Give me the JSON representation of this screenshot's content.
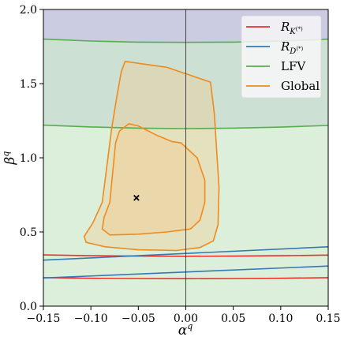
{
  "chart_data": {
    "type": "line",
    "title": "",
    "xlabel": "α^q",
    "ylabel": "β^q",
    "xlim": [
      -0.15,
      0.15
    ],
    "ylim": [
      0.0,
      2.0
    ],
    "x_ticks": [
      -0.15,
      -0.1,
      -0.05,
      0.0,
      0.05,
      0.1,
      0.15
    ],
    "x_tick_labels": [
      "−0.15",
      "−0.10",
      "−0.05",
      "0.00",
      "0.05",
      "0.10",
      "0.15"
    ],
    "y_ticks": [
      0.0,
      0.5,
      1.0,
      1.5,
      2.0
    ],
    "y_tick_labels": [
      "0.0",
      "0.5",
      "1.0",
      "1.5",
      "2.0"
    ],
    "grid": false,
    "reference_lines": [
      {
        "axis": "x",
        "value": 0.0
      }
    ],
    "legend_position": "top-right",
    "legend": [
      {
        "label": "R_K(*)",
        "base": "R",
        "sub": "K",
        "sup": "(*)",
        "color": "#e8332c"
      },
      {
        "label": "R_D(*)",
        "base": "R",
        "sub": "D",
        "sup": "(*)",
        "color": "#3478b5"
      },
      {
        "label": "LFV",
        "base": "LFV",
        "sub": "",
        "sup": "",
        "color": "#55af4b"
      },
      {
        "label": "Global",
        "base": "Global",
        "sub": "",
        "sup": "",
        "color": "#f08a1c"
      }
    ],
    "shaded_regions": [
      {
        "name": "LFV excluded (β > ~1.79)",
        "color": "#a8a8ce",
        "opacity": 0.6
      },
      {
        "name": "LFV 2σ band",
        "color": "#b0d0bc",
        "opacity": 0.65
      },
      {
        "name": "LFV 1σ band",
        "color": "#cfe9cf",
        "opacity": 0.75
      }
    ],
    "series": [
      {
        "name": "LFV",
        "color": "#55af4b",
        "curves": [
          {
            "x": [
              -0.15,
              -0.1,
              -0.05,
              0.0,
              0.05,
              0.1,
              0.15
            ],
            "y": [
              1.8,
              1.787,
              1.78,
              1.778,
              1.78,
              1.787,
              1.8
            ]
          },
          {
            "x": [
              -0.15,
              -0.1,
              -0.05,
              0.0,
              0.05,
              0.1,
              0.15
            ],
            "y": [
              1.22,
              1.208,
              1.2,
              1.197,
              1.2,
              1.207,
              1.218
            ]
          }
        ]
      },
      {
        "name": "R_K(*)",
        "color": "#e8332c",
        "curves": [
          {
            "x": [
              -0.15,
              -0.1,
              -0.05,
              0.0,
              0.05,
              0.1,
              0.15
            ],
            "y": [
              0.345,
              0.34,
              0.337,
              0.336,
              0.337,
              0.34,
              0.344
            ]
          },
          {
            "x": [
              -0.15,
              -0.1,
              -0.05,
              0.0,
              0.05,
              0.1,
              0.15
            ],
            "y": [
              0.192,
              0.188,
              0.186,
              0.185,
              0.186,
              0.188,
              0.192
            ]
          }
        ]
      },
      {
        "name": "R_D(*)",
        "color": "#3478b5",
        "curves": [
          {
            "x": [
              -0.15,
              0.15
            ],
            "y": [
              0.31,
              0.4
            ]
          },
          {
            "x": [
              -0.15,
              0.15
            ],
            "y": [
              0.19,
              0.27
            ]
          }
        ]
      },
      {
        "name": "Global",
        "color": "#f08a1c",
        "contours": [
          {
            "level": "outer",
            "x": [
              -0.064,
              -0.02,
              0.026,
              0.03,
              0.033,
              0.035,
              0.034,
              0.029,
              0.015,
              -0.01,
              -0.05,
              -0.085,
              -0.105,
              -0.107,
              -0.098,
              -0.088,
              -0.085,
              -0.082,
              -0.078,
              -0.073,
              -0.068
            ],
            "y": [
              1.65,
              1.61,
              1.51,
              1.3,
              1.0,
              0.8,
              0.55,
              0.44,
              0.395,
              0.375,
              0.38,
              0.4,
              0.43,
              0.47,
              0.56,
              0.7,
              0.85,
              1.0,
              1.2,
              1.4,
              1.58
            ]
          },
          {
            "level": "inner",
            "x": [
              -0.07,
              -0.06,
              -0.05,
              -0.03,
              -0.015,
              -0.005,
              0.012,
              0.02,
              0.02,
              0.015,
              0.005,
              -0.02,
              -0.05,
              -0.08,
              -0.088,
              -0.086,
              -0.08,
              -0.077,
              -0.074
            ],
            "y": [
              1.18,
              1.23,
              1.215,
              1.15,
              1.11,
              1.1,
              1.0,
              0.85,
              0.7,
              0.58,
              0.52,
              0.5,
              0.485,
              0.48,
              0.52,
              0.6,
              0.7,
              0.9,
              1.1
            ]
          }
        ]
      }
    ],
    "best_fit_point": {
      "x": -0.052,
      "y": 0.73,
      "marker": "x"
    }
  }
}
